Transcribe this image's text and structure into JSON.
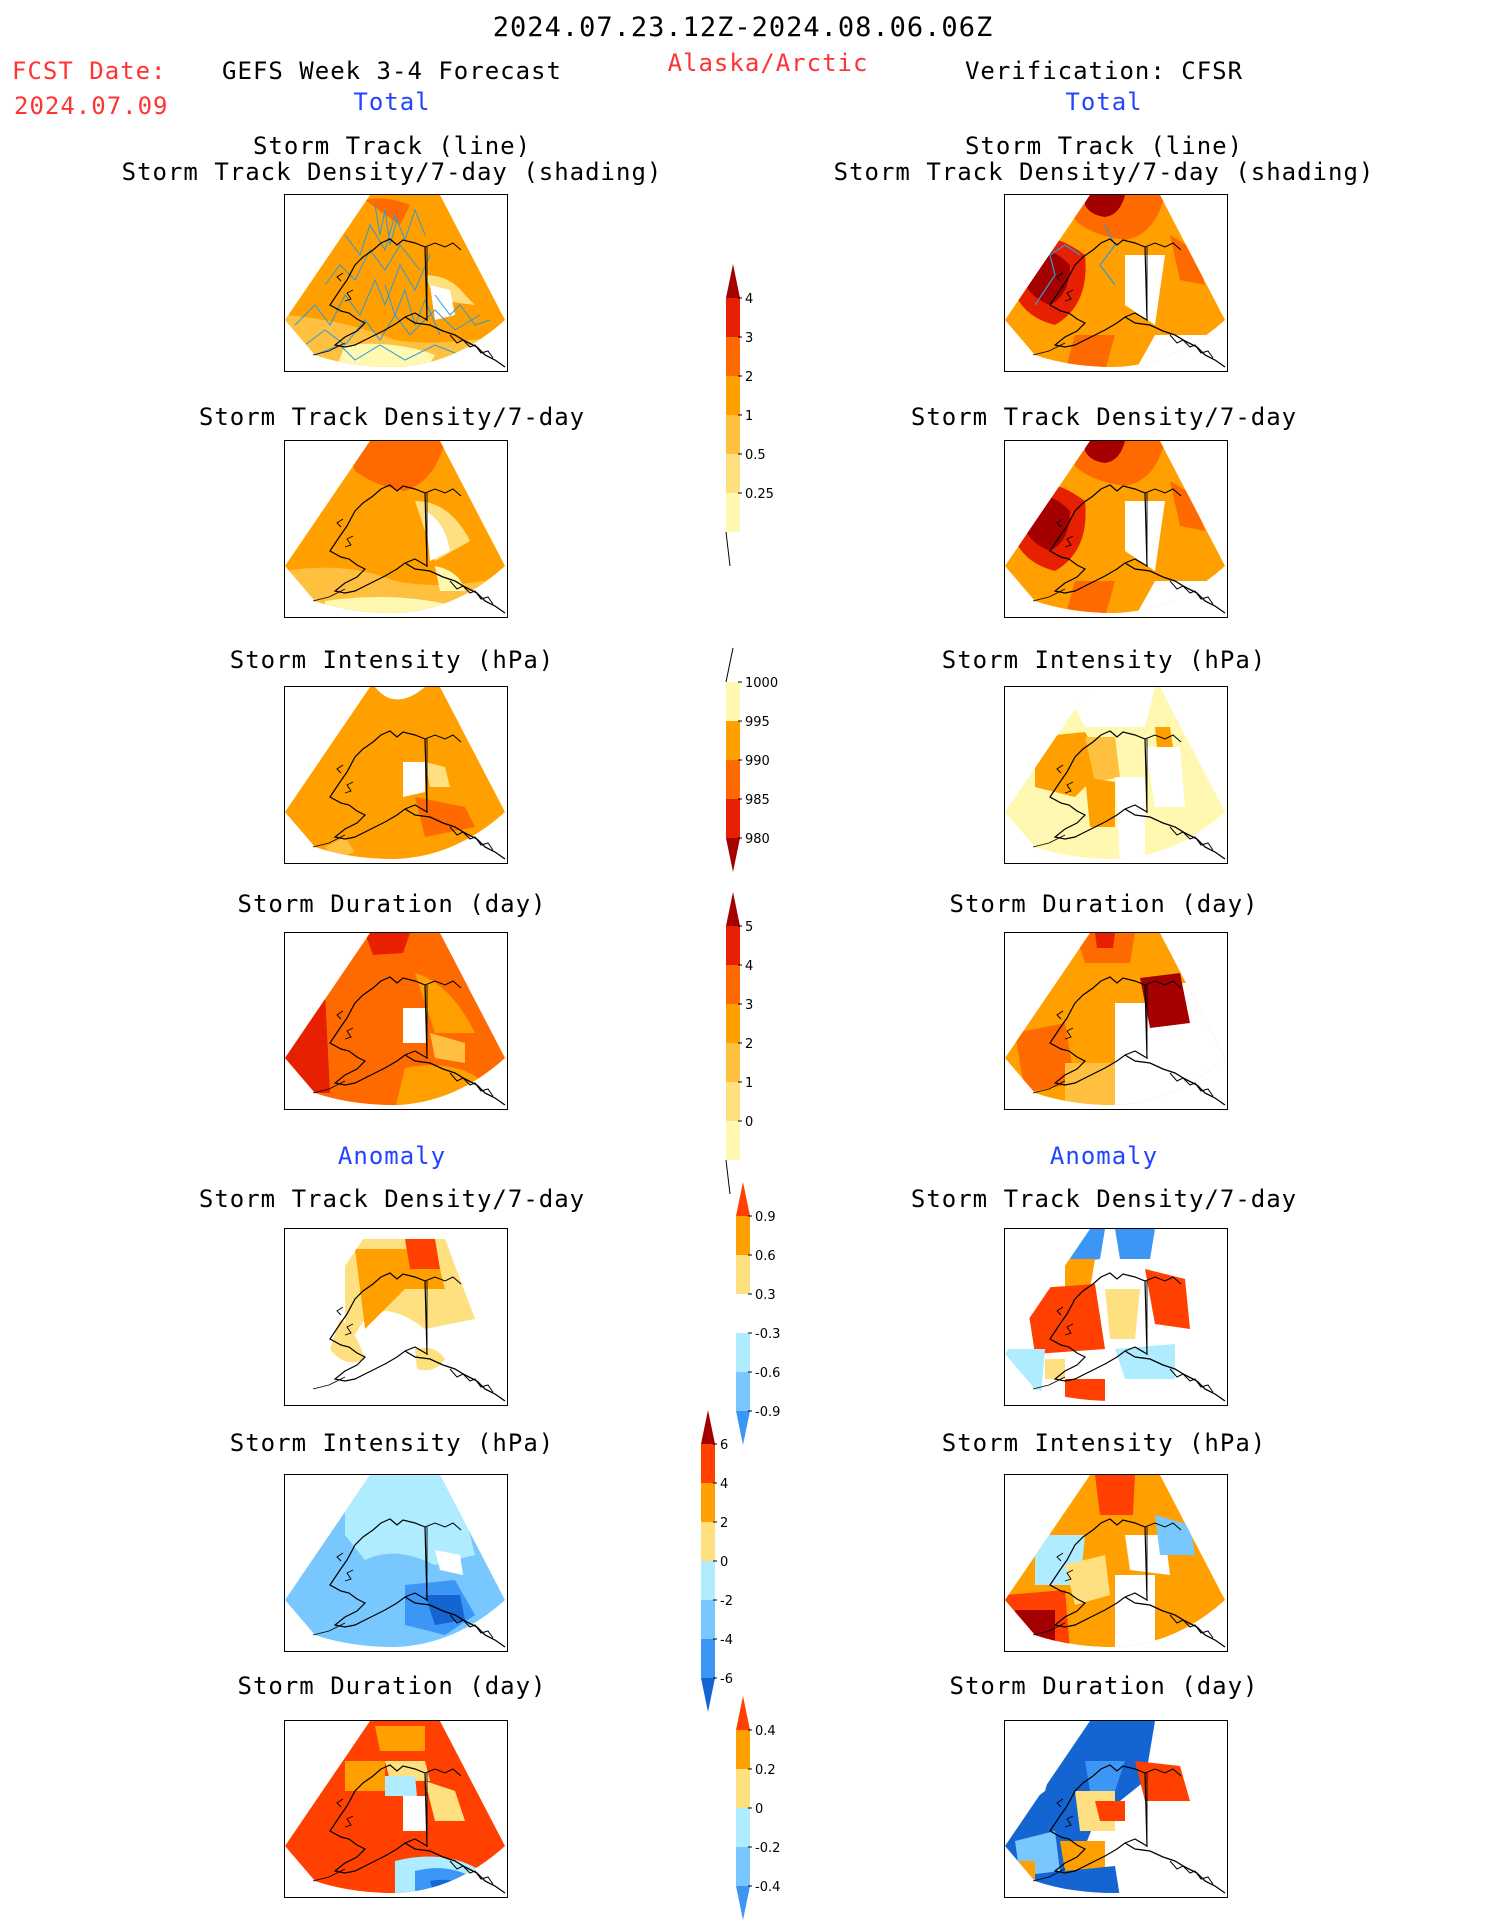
{
  "header": {
    "date_range": "2024.07.23.12Z-2024.08.06.06Z",
    "fcst_label": "FCST Date:",
    "fcst_date": "2024.07.09",
    "forecast_title": "GEFS Week 3-4 Forecast",
    "region": "Alaska/Arctic",
    "verification": "Verification: CFSR",
    "left_total": "Total",
    "right_total": "Total",
    "left_anomaly": "Anomaly",
    "right_anomaly": "Anomaly"
  },
  "panel_titles": {
    "track_line": "Storm Track (line)",
    "track_shading": "Storm Track Density/7-day (shading)",
    "density": "Storm Track Density/7-day",
    "intensity": "Storm Intensity (hPa)",
    "duration": "Storm Duration (day)"
  },
  "colors": {
    "pale_yellow": "#fff8b0",
    "light_yellow": "#ffe080",
    "yellow_orange": "#ffc040",
    "orange": "#ffa000",
    "dark_orange": "#ff6a00",
    "red": "#e62000",
    "dark_red": "#a50000",
    "white": "#ffffff",
    "light_blue": "#b0ecff",
    "sky_blue": "#78c8ff",
    "blue": "#3c96f5",
    "dark_blue": "#1464d2",
    "track_line": "#2a9be0"
  },
  "colorbars": [
    {
      "id": "density_total",
      "labels": [
        "4",
        "3",
        "2",
        "1",
        "0.5",
        "0.25"
      ],
      "colors": [
        "#a50000",
        "#e62000",
        "#ff6a00",
        "#ffa000",
        "#ffc040",
        "#ffe080",
        "#fff8b0"
      ],
      "arrow_top": true,
      "arrow_bottom": false
    },
    {
      "id": "intensity_total",
      "labels": [
        "1000",
        "995",
        "990",
        "985",
        "980"
      ],
      "colors": [
        "#fff8b0",
        "#ffa000",
        "#ff6a00",
        "#e62000",
        "#a50000"
      ],
      "arrow_top": false,
      "arrow_bottom": true
    },
    {
      "id": "duration_total",
      "labels": [
        "5",
        "4",
        "3",
        "2",
        "1",
        "0"
      ],
      "colors": [
        "#a50000",
        "#e62000",
        "#ff6a00",
        "#ffa000",
        "#ffc040",
        "#ffe080",
        "#fff8b0"
      ],
      "arrow_top": true,
      "arrow_bottom": false
    },
    {
      "id": "density_anomaly",
      "labels": [
        "0.9",
        "0.6",
        "0.3",
        "-0.3",
        "-0.6",
        "-0.9"
      ],
      "colors": [
        "#ff4000",
        "#ffa000",
        "#ffe080",
        "#ffffff",
        "#b0ecff",
        "#78c8ff",
        "#3c96f5"
      ],
      "arrow_top": true,
      "arrow_bottom": true
    },
    {
      "id": "intensity_anomaly",
      "labels": [
        "6",
        "4",
        "2",
        "0",
        "-2",
        "-4",
        "-6"
      ],
      "colors": [
        "#a50000",
        "#ff4000",
        "#ffa000",
        "#ffe080",
        "#b0ecff",
        "#78c8ff",
        "#3c96f5",
        "#1464d2"
      ],
      "arrow_top": true,
      "arrow_bottom": true
    },
    {
      "id": "duration_anomaly",
      "labels": [
        "0.4",
        "0.2",
        "0",
        "-0.2",
        "-0.4"
      ],
      "colors": [
        "#ff4000",
        "#ffa000",
        "#ffe080",
        "#b0ecff",
        "#78c8ff",
        "#3c96f5"
      ],
      "arrow_top": true,
      "arrow_bottom": true
    }
  ]
}
